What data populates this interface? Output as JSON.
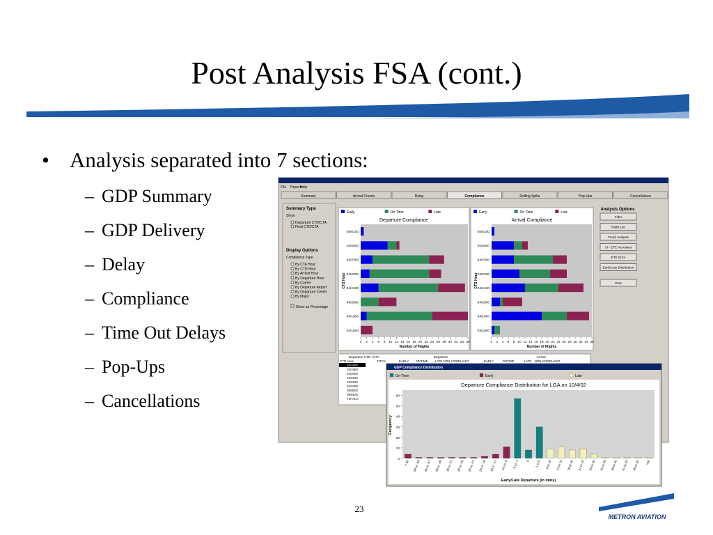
{
  "slide": {
    "title": "Post Analysis FSA (cont.)",
    "bullet": "Analysis separated into 7 sections:",
    "items": [
      "GDP Summary",
      "GDP Delivery",
      "Delay",
      "Compliance",
      "Time Out Delays",
      "Pop-Ups",
      "Cancellations"
    ],
    "page_number": "23",
    "logo": "METRON AVIATION"
  },
  "window": {
    "menu": [
      "File",
      "Reports",
      "Help"
    ],
    "tabs": [
      "Summary",
      "Arrival Counts",
      "Delay",
      "Compliance",
      "Rolling Spike",
      "Pop-Ups",
      "Cancellations"
    ],
    "summary_type": {
      "heading": "Summary Type",
      "show": "Show",
      "options": [
        "Departure CTD/CTA",
        "Final CTD/CTA"
      ]
    },
    "display_options": {
      "heading": "Display Options",
      "compliance_type": "Compliance Type",
      "options": [
        "By CTA Hour",
        "By CTD Hour",
        "By Arrival Hour",
        "By Departure Hour",
        "By Carrier",
        "By Departure Airport",
        "By Departure Center",
        "By Major"
      ],
      "checkbox": "Show as Percentage"
    },
    "analysis_options": {
      "heading": "Analysis Options",
      "buttons": [
        "Filter",
        "Flight List",
        "Trend Analysis",
        "SI - ETE Increases",
        "ETE Error",
        "Early/Late Distribution",
        "Print"
      ]
    },
    "charts": [
      {
        "title": "Departure Compliance",
        "ylabel": "CTD Hour",
        "xlabel": "Number of Flights",
        "categories": [
          "05/0100",
          "05/0000",
          "04/2300",
          "04/2200",
          "04/2100",
          "04/2000",
          "04/1900",
          "04/1800"
        ],
        "series": [
          {
            "name": "Early",
            "color": "#0000e0",
            "values": [
              1,
              9,
              4,
              3,
              6,
              0,
              2,
              0
            ]
          },
          {
            "name": "On Time",
            "color": "#2e8b57",
            "values": [
              0,
              3,
              19,
              20,
              20,
              6,
              22,
              0
            ]
          },
          {
            "name": "Late",
            "color": "#8b2252",
            "values": [
              0,
              1,
              5,
              4,
              9,
              6,
              12,
              4
            ]
          }
        ],
        "xlim": [
          0,
          36
        ],
        "xticks": [
          0,
          2,
          4,
          6,
          8,
          10,
          12,
          14,
          16,
          18,
          20,
          22,
          24,
          26,
          28,
          30,
          32,
          34,
          36
        ]
      },
      {
        "title": "Arrival Compliance",
        "ylabel": "CTD Hour",
        "xlabel": "Number of Flights",
        "categories": [
          "05/0100",
          "05/0000",
          "04/2300",
          "04/2200",
          "04/2100",
          "04/2000",
          "04/1900",
          "04/1800"
        ],
        "series": [
          {
            "name": "Early",
            "color": "#0000e0",
            "values": [
              1,
              8,
              8,
              10,
              12,
              3,
              18,
              1
            ]
          },
          {
            "name": "On Time",
            "color": "#2e8b57",
            "values": [
              0,
              3,
              14,
              11,
              12,
              1,
              9,
              2
            ]
          },
          {
            "name": "Late",
            "color": "#8b2252",
            "values": [
              0,
              2,
              5,
              6,
              9,
              7,
              8,
              0
            ]
          }
        ],
        "xlim": [
          0,
          36
        ],
        "xticks": [
          0,
          2,
          4,
          6,
          8,
          10,
          12,
          14,
          16,
          18,
          20,
          22,
          24,
          26,
          28,
          30,
          32,
          34,
          36
        ]
      }
    ],
    "table": {
      "groups": [
        "Departure CTD / CTA",
        "Departure",
        "Arrival"
      ],
      "columns": [
        "CTD Hour",
        "TOTAL",
        "EARLY",
        "ONTIME",
        "LATE",
        "NON-COMPLIANT",
        "EARLY",
        "ONTIME",
        "LATE",
        "NON-COMPLIANT"
      ],
      "rows": [
        "04/1800",
        "04/1900",
        "04/2000",
        "04/2100",
        "04/2200",
        "04/2300",
        "05/0000",
        "05/0100",
        "TOTALS"
      ]
    }
  },
  "distribution": {
    "window_title": "GDP Compliance Distribution",
    "title": "Departure Compliance Distribution for LGA on 10/4/02",
    "xlabel": "Early/Late Departure (in mins)",
    "ylabel": "Frequency",
    "legend": [
      {
        "name": "On-Time",
        "color": "#138080"
      },
      {
        "name": "Early",
        "color": "#8b2252"
      },
      {
        "name": "Late",
        "color": "#f2f0b8"
      }
    ],
    "categories": [
      "<-50",
      "-50 to -46",
      "-45 to -41",
      "-40 to -36",
      "-35 to -31",
      "-30 to -26",
      "-25 to -21",
      "-20 to -16",
      "-15 to -11",
      "-10 to -6",
      "-5 to -1",
      "0",
      "1 to 5",
      "6 to 10",
      "11 to 15",
      "16 to 20",
      "21 to 25",
      "26 to 30",
      "31 to 35",
      "36 to 40",
      "41 to 45",
      "46 to 50",
      ">50"
    ],
    "values": [
      4,
      1,
      1,
      1,
      1,
      1,
      1,
      2,
      4,
      11,
      57,
      8,
      30,
      9,
      11,
      8,
      9,
      4,
      1,
      1,
      1,
      1,
      1
    ],
    "colors": [
      "#8b2252",
      "#8b2252",
      "#8b2252",
      "#8b2252",
      "#8b2252",
      "#8b2252",
      "#8b2252",
      "#8b2252",
      "#8b2252",
      "#8b2252",
      "#138080",
      "#138080",
      "#138080",
      "#f2f0b8",
      "#f2f0b8",
      "#f2f0b8",
      "#f2f0b8",
      "#f2f0b8",
      "#f2f0b8",
      "#f2f0b8",
      "#f2f0b8",
      "#f2f0b8",
      "#f2f0b8"
    ],
    "ylim": [
      0,
      65
    ],
    "yticks": [
      0,
      10,
      20,
      30,
      40,
      50,
      60
    ]
  }
}
